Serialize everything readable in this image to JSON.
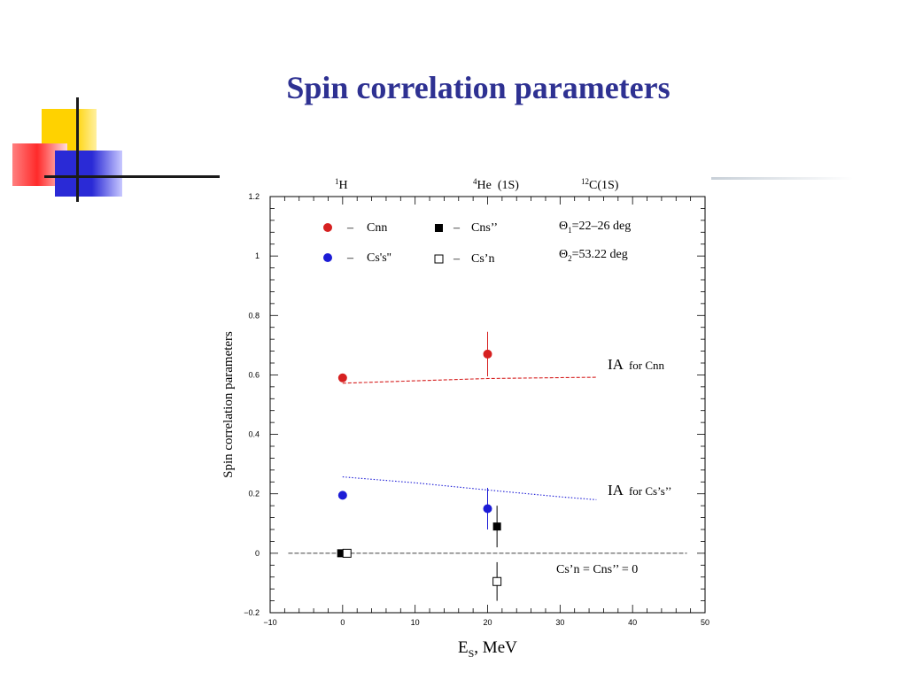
{
  "slide": {
    "title": "Spin correlation parameters"
  },
  "colors": {
    "title": "#2e3192",
    "red": "#d62020",
    "blue": "#1c1cd6",
    "magenta": "#b000b0",
    "darkred": "#b01818"
  },
  "chart_data": {
    "type": "scatter",
    "xlabel_main": "E",
    "xlabel_sub": "S",
    "xlabel_tail": ", MeV",
    "ylabel": "Spin correlation parameters",
    "xlim": [
      -10,
      50
    ],
    "ylim": [
      -0.2,
      1.2
    ],
    "xticks": [
      -10,
      0,
      10,
      20,
      30,
      40,
      50
    ],
    "xtick_labels": [
      "−10",
      "0",
      "10",
      "20",
      "30",
      "40",
      "50"
    ],
    "yticks": [
      -0.2,
      0,
      0.2,
      0.4,
      0.6,
      0.8,
      1,
      1.2
    ],
    "ytick_labels": [
      "−0.2",
      "0",
      "0.2",
      "0.4",
      "0.6",
      "0.8",
      "1",
      "1.2"
    ],
    "top_labels": [
      {
        "sup": "1",
        "text": "H",
        "x": 0
      },
      {
        "sup": "4",
        "text": "He  (1S)",
        "x": 20
      },
      {
        "sup": "12",
        "text": "C(1S)",
        "x": 38
      }
    ],
    "legend": [
      {
        "marker": "circle-red",
        "dash": "–",
        "label": "Cnn"
      },
      {
        "marker": "circle-blue",
        "dash": "–",
        "label": "Cs's''"
      },
      {
        "marker": "square-filled",
        "dash": "–",
        "label": "Cns’’"
      },
      {
        "marker": "square-open",
        "dash": "–",
        "label": "Cs’n"
      }
    ],
    "angles": [
      {
        "sym": "Θ",
        "sub": "1",
        "text": "=22–26 deg"
      },
      {
        "sym": "Θ",
        "sub": "2",
        "text": "=53.22 deg"
      }
    ],
    "series": [
      {
        "name": "Cnn",
        "marker": "circle",
        "color": "#d62020",
        "points": [
          {
            "x": 0,
            "y": 0.59,
            "err": 0
          },
          {
            "x": 20,
            "y": 0.67,
            "err": 0.075
          }
        ]
      },
      {
        "name": "Cs's''",
        "marker": "circle",
        "color": "#1c1cd6",
        "points": [
          {
            "x": 0,
            "y": 0.195,
            "err": 0
          },
          {
            "x": 20,
            "y": 0.15,
            "err": 0.07
          }
        ]
      },
      {
        "name": "Cns’’",
        "marker": "square-filled",
        "color": "#000000",
        "points": [
          {
            "x": -0.2,
            "y": 0,
            "err": 0
          },
          {
            "x": 21.3,
            "y": 0.09,
            "err": 0.07
          }
        ]
      },
      {
        "name": "Cs’n",
        "marker": "square-open",
        "color": "#000000",
        "points": [
          {
            "x": 0.6,
            "y": 0,
            "err": 0
          },
          {
            "x": 21.3,
            "y": -0.095,
            "err": 0.065
          }
        ]
      }
    ],
    "ia_curves": [
      {
        "color": "#d62020",
        "style": "dashed",
        "points": [
          [
            0,
            0.572
          ],
          [
            10,
            0.58
          ],
          [
            20,
            0.588
          ],
          [
            30,
            0.591
          ],
          [
            35,
            0.592
          ]
        ]
      },
      {
        "color": "#1c1cd6",
        "style": "dotted",
        "points": [
          [
            0,
            0.257
          ],
          [
            10,
            0.237
          ],
          [
            20,
            0.213
          ],
          [
            30,
            0.19
          ],
          [
            35,
            0.18
          ]
        ]
      }
    ],
    "zero_line": {
      "y": 0,
      "x0": -7.5,
      "x1": 47.5
    },
    "annotations": [
      {
        "id": "ia_cnn",
        "main": "IA",
        "tail": "for Cnn",
        "color": "#b01818",
        "x": 37,
        "y": 0.64
      },
      {
        "id": "ia_css",
        "main": "IA",
        "tail": "for Cs’s’’",
        "color": "#1c1cd6",
        "x": 37,
        "y": 0.21
      },
      {
        "id": "zero_note",
        "text": "Cs’n = Cns’’ = 0",
        "color": "#000000",
        "x": 29.5,
        "y": -0.055
      }
    ]
  }
}
